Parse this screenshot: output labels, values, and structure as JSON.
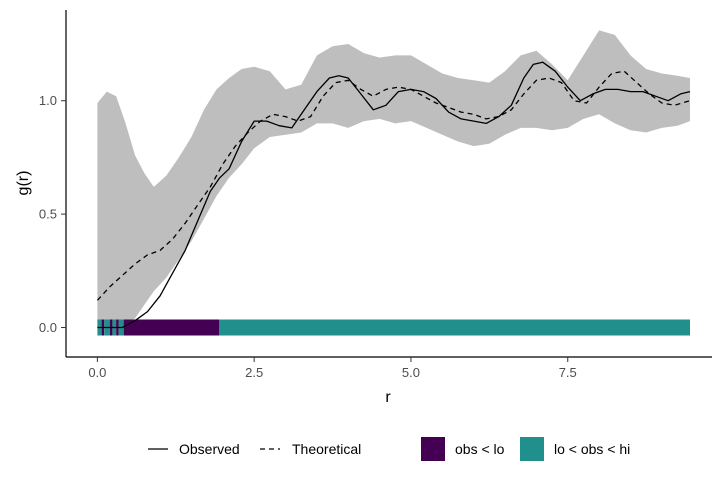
{
  "chart_data": {
    "type": "line",
    "xlabel": "r",
    "ylabel": "g(r)",
    "xlim": [
      -0.5,
      9.8
    ],
    "ylim": [
      -0.13,
      1.4
    ],
    "xticks": [
      0.0,
      2.5,
      5.0,
      7.5
    ],
    "xtick_labels": [
      "0.0",
      "2.5",
      "5.0",
      "7.5"
    ],
    "yticks": [
      0.0,
      0.5,
      1.0
    ],
    "ytick_labels": [
      "0.0",
      "0.5",
      "1.0"
    ],
    "grid": false,
    "legend_position": "bottom",
    "envelope": {
      "color": "#bebebe",
      "x": [
        0.0,
        0.15,
        0.3,
        0.45,
        0.6,
        0.75,
        0.9,
        1.1,
        1.3,
        1.5,
        1.7,
        1.9,
        2.1,
        2.3,
        2.5,
        2.75,
        3.0,
        3.25,
        3.5,
        3.75,
        4.0,
        4.25,
        4.5,
        4.75,
        5.0,
        5.25,
        5.5,
        5.75,
        6.0,
        6.25,
        6.5,
        6.75,
        7.0,
        7.25,
        7.5,
        7.75,
        8.0,
        8.25,
        8.5,
        8.75,
        9.0,
        9.25,
        9.45
      ],
      "hi": [
        0.99,
        1.04,
        1.02,
        0.9,
        0.76,
        0.68,
        0.62,
        0.67,
        0.75,
        0.84,
        0.96,
        1.05,
        1.1,
        1.14,
        1.15,
        1.13,
        1.05,
        1.07,
        1.2,
        1.24,
        1.25,
        1.21,
        1.19,
        1.2,
        1.2,
        1.16,
        1.12,
        1.1,
        1.09,
        1.08,
        1.13,
        1.2,
        1.22,
        1.16,
        1.09,
        1.2,
        1.31,
        1.29,
        1.2,
        1.14,
        1.12,
        1.11,
        1.1
      ],
      "lo": [
        0.0,
        0.0,
        0.0,
        0.01,
        0.04,
        0.1,
        0.16,
        0.22,
        0.3,
        0.38,
        0.48,
        0.58,
        0.66,
        0.72,
        0.79,
        0.84,
        0.85,
        0.86,
        0.9,
        0.9,
        0.88,
        0.91,
        0.92,
        0.9,
        0.91,
        0.88,
        0.85,
        0.82,
        0.8,
        0.81,
        0.85,
        0.88,
        0.88,
        0.87,
        0.88,
        0.92,
        0.94,
        0.9,
        0.87,
        0.86,
        0.88,
        0.89,
        0.91
      ]
    },
    "series": [
      {
        "name": "Observed",
        "style": "solid",
        "color": "#000000",
        "x": [
          0.0,
          0.4,
          0.6,
          0.8,
          1.0,
          1.2,
          1.4,
          1.6,
          1.8,
          1.95,
          2.1,
          2.3,
          2.5,
          2.7,
          2.9,
          3.1,
          3.3,
          3.5,
          3.7,
          3.85,
          4.0,
          4.2,
          4.4,
          4.6,
          4.8,
          5.0,
          5.2,
          5.4,
          5.6,
          5.8,
          6.0,
          6.2,
          6.4,
          6.6,
          6.8,
          6.95,
          7.1,
          7.3,
          7.5,
          7.7,
          7.9,
          8.1,
          8.3,
          8.5,
          8.7,
          8.9,
          9.1,
          9.3,
          9.45
        ],
        "y": [
          0.0,
          0.0,
          0.03,
          0.07,
          0.14,
          0.24,
          0.34,
          0.47,
          0.6,
          0.66,
          0.7,
          0.82,
          0.91,
          0.91,
          0.89,
          0.88,
          0.96,
          1.04,
          1.1,
          1.11,
          1.1,
          1.03,
          0.96,
          0.98,
          1.04,
          1.05,
          1.04,
          1.01,
          0.95,
          0.92,
          0.91,
          0.9,
          0.93,
          0.98,
          1.1,
          1.16,
          1.17,
          1.13,
          1.06,
          1.0,
          1.03,
          1.05,
          1.05,
          1.04,
          1.04,
          1.02,
          1.0,
          1.03,
          1.04
        ]
      },
      {
        "name": "Theoretical",
        "style": "dashed",
        "color": "#000000",
        "x": [
          0.0,
          0.2,
          0.4,
          0.6,
          0.8,
          1.0,
          1.2,
          1.4,
          1.6,
          1.8,
          2.0,
          2.2,
          2.4,
          2.6,
          2.8,
          3.0,
          3.2,
          3.4,
          3.6,
          3.8,
          4.0,
          4.2,
          4.4,
          4.6,
          4.8,
          5.0,
          5.2,
          5.4,
          5.6,
          5.8,
          6.0,
          6.2,
          6.4,
          6.6,
          6.8,
          7.0,
          7.2,
          7.4,
          7.6,
          7.8,
          8.0,
          8.2,
          8.4,
          8.6,
          8.8,
          9.0,
          9.2,
          9.45
        ],
        "y": [
          0.12,
          0.18,
          0.23,
          0.28,
          0.32,
          0.34,
          0.39,
          0.46,
          0.54,
          0.62,
          0.72,
          0.8,
          0.86,
          0.91,
          0.94,
          0.93,
          0.91,
          0.93,
          1.02,
          1.08,
          1.09,
          1.05,
          1.02,
          1.05,
          1.06,
          1.05,
          1.02,
          0.99,
          0.97,
          0.95,
          0.94,
          0.92,
          0.93,
          0.96,
          1.03,
          1.09,
          1.1,
          1.08,
          1.0,
          0.99,
          1.06,
          1.12,
          1.13,
          1.08,
          1.03,
          0.99,
          0.98,
          1.0
        ]
      }
    ],
    "indicator_bar": {
      "segments": [
        {
          "from": 0.0,
          "to": 0.07,
          "category": "lo < obs < hi"
        },
        {
          "from": 0.07,
          "to": 0.11,
          "category": "obs < lo"
        },
        {
          "from": 0.11,
          "to": 0.2,
          "category": "lo < obs < hi"
        },
        {
          "from": 0.2,
          "to": 0.24,
          "category": "obs < lo"
        },
        {
          "from": 0.24,
          "to": 0.3,
          "category": "lo < obs < hi"
        },
        {
          "from": 0.3,
          "to": 0.34,
          "category": "obs < lo"
        },
        {
          "from": 0.34,
          "to": 0.42,
          "category": "lo < obs < hi"
        },
        {
          "from": 0.42,
          "to": 1.94,
          "category": "obs < lo"
        },
        {
          "from": 1.94,
          "to": 9.45,
          "category": "lo < obs < hi"
        }
      ],
      "colors": {
        "obs < lo": "#440154",
        "lo < obs < hi": "#21908c"
      }
    },
    "legend": {
      "lines": [
        {
          "label": "Observed",
          "style": "solid"
        },
        {
          "label": "Theoretical",
          "style": "dashed"
        }
      ],
      "fills": [
        {
          "label": "obs < lo",
          "color": "#440154"
        },
        {
          "label": "lo < obs < hi",
          "color": "#21908c"
        }
      ]
    }
  }
}
